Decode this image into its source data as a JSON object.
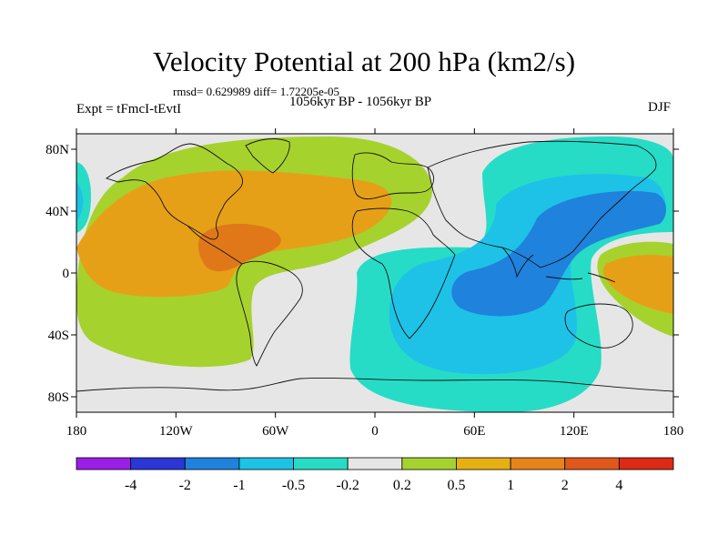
{
  "title": "Velocity Potential at 200 hPa (km2/s)",
  "stats": "rmsd= 0.629989 diff= 1.72205e-05",
  "left_label": "Expt = tFmcI-tEvtI",
  "center_label": "1056kyr BP - 1056kyr BP",
  "right_label": "DJF",
  "lat_ticks": [
    "80N",
    "40N",
    "0",
    "40S",
    "80S"
  ],
  "lat_values": [
    80,
    40,
    0,
    -40,
    -80
  ],
  "lon_ticks": [
    "180",
    "120W",
    "60W",
    "0",
    "60E",
    "120E",
    "180"
  ],
  "lon_values": [
    -180,
    -120,
    -60,
    0,
    60,
    120,
    180
  ],
  "colorbar": {
    "colors": [
      "#9a1ee6",
      "#2a36d6",
      "#1f82dc",
      "#1ec2e6",
      "#26dcc6",
      "#e6e6e6",
      "#a6d22e",
      "#e6b012",
      "#e6841a",
      "#e0581a",
      "#dc2a14"
    ],
    "labels": [
      "-4",
      "-2",
      "-1",
      "-0.5",
      "-0.2",
      "0.2",
      "0.5",
      "1",
      "2",
      "4"
    ]
  },
  "map_colors": {
    "ocean_bg": "#e6e6e6",
    "green": "#a6d22e",
    "orange": "#e6a018",
    "dark_orange": "#e0781a",
    "cyan": "#26dcc6",
    "light_blue": "#1ec2e6",
    "blue": "#1f82dc"
  }
}
